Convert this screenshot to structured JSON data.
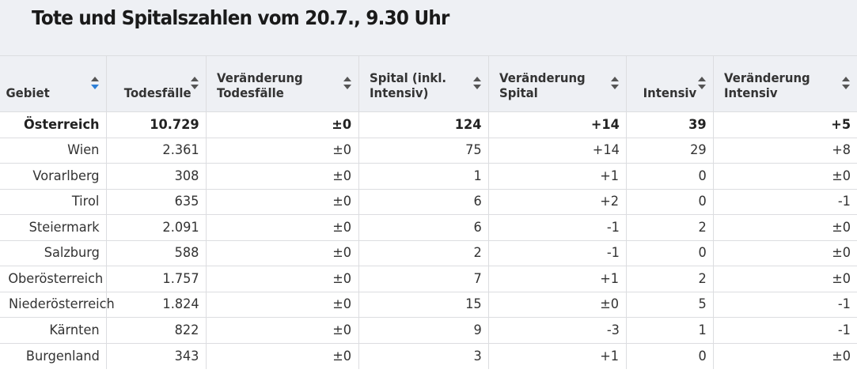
{
  "title": "Tote und Spitalszahlen vom 20.7., 9.30 Uhr",
  "columns": [
    {
      "label_line1": "Gebiet",
      "label_line2": ""
    },
    {
      "label_line1": "Todesfälle",
      "label_line2": ""
    },
    {
      "label_line1": "Veränderung",
      "label_line2": "Todesfälle"
    },
    {
      "label_line1": "Spital (inkl.",
      "label_line2": "Intensiv)"
    },
    {
      "label_line1": "Veränderung",
      "label_line2": "Spital"
    },
    {
      "label_line1": "Intensiv",
      "label_line2": ""
    },
    {
      "label_line1": "Veränderung",
      "label_line2": "Intensiv"
    }
  ],
  "rows": [
    [
      "Österreich",
      "10.729",
      "±0",
      "124",
      "+14",
      "39",
      "+5"
    ],
    [
      "Wien",
      "2.361",
      "±0",
      "75",
      "+14",
      "29",
      "+8"
    ],
    [
      "Vorarlberg",
      "308",
      "±0",
      "1",
      "+1",
      "0",
      "±0"
    ],
    [
      "Tirol",
      "635",
      "±0",
      "6",
      "+2",
      "0",
      "-1"
    ],
    [
      "Steiermark",
      "2.091",
      "±0",
      "6",
      "-1",
      "2",
      "±0"
    ],
    [
      "Salzburg",
      "588",
      "±0",
      "2",
      "-1",
      "0",
      "±0"
    ],
    [
      "Oberösterreich",
      "1.757",
      "±0",
      "7",
      "+1",
      "2",
      "±0"
    ],
    [
      "Niederösterreich",
      "1.824",
      "±0",
      "15",
      "±0",
      "5",
      "-1"
    ],
    [
      "Kärnten",
      "822",
      "±0",
      "9",
      "-3",
      "1",
      "-1"
    ],
    [
      "Burgenland",
      "343",
      "±0",
      "3",
      "+1",
      "0",
      "±0"
    ]
  ],
  "sort": {
    "active_column": "Gebiet",
    "active_color": "#2d7fd6"
  },
  "colors": {
    "header_bg": "#eef0f4",
    "border": "#dcdde0"
  }
}
